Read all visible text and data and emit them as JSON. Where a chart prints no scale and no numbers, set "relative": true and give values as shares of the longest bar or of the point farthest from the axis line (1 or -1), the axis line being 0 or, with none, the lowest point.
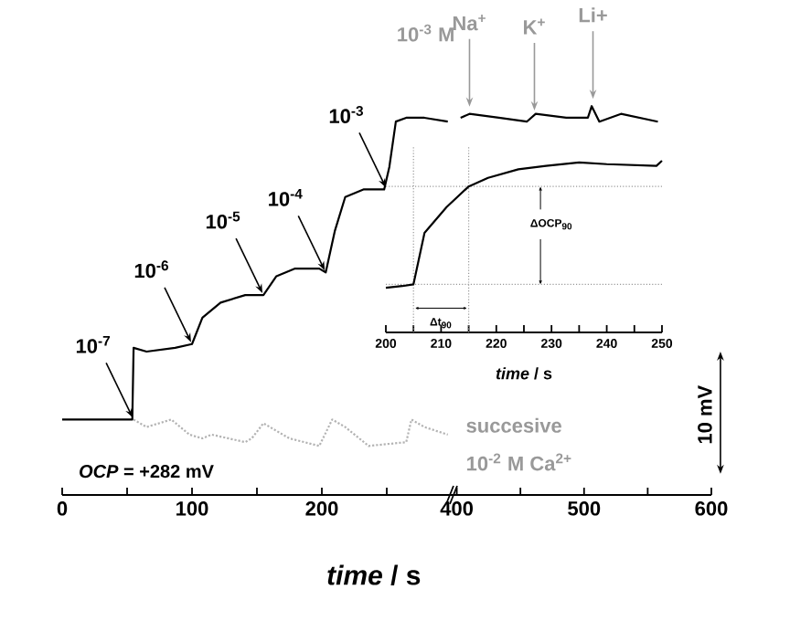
{
  "chart_data": [
    {
      "type": "line",
      "relative": true,
      "xlim": [
        0,
        300
      ],
      "xticks": [
        0,
        {
          "value": 50,
          "label": null
        },
        100,
        {
          "value": 150,
          "label": null
        },
        200,
        {
          "value": 250,
          "label": null
        }
      ],
      "xlabel": "*time* / s",
      "tick_labels": "x",
      "series": [
        {
          "color": "#000000",
          "line_style": "solid",
          "x": [
            0,
            54,
            55,
            65,
            87,
            100,
            108,
            122,
            141,
            155,
            165,
            179,
            198,
            203,
            210,
            218,
            232,
            248,
            252,
            257,
            265,
            279,
            297
          ],
          "values": [
            0.2,
            0.2,
            0.39,
            0.38,
            0.39,
            0.4,
            0.47,
            0.51,
            0.53,
            0.53,
            0.58,
            0.6,
            0.6,
            0.59,
            0.7,
            0.79,
            0.81,
            0.81,
            0.87,
            0.99,
            1.0,
            1.0,
            0.99
          ]
        },
        {
          "color": "#b3b3b3",
          "line_style": "dotted",
          "x": [
            55,
            65,
            84,
            98,
            108,
            115,
            141,
            146,
            155,
            175,
            198,
            208,
            218,
            236,
            265,
            269,
            279,
            297
          ],
          "values": [
            0.2,
            0.18,
            0.2,
            0.16,
            0.15,
            0.16,
            0.14,
            0.15,
            0.19,
            0.15,
            0.13,
            0.2,
            0.18,
            0.13,
            0.14,
            0.2,
            0.18,
            0.16
          ]
        }
      ],
      "annotations": [
        {
          "text": "10$^{-7}$",
          "x": 55,
          "y": 0.2
        },
        {
          "text": "10$^{-6}$",
          "x": 100,
          "y": 0.4
        },
        {
          "text": "10$^{-5}$",
          "x": 155,
          "y": 0.53
        },
        {
          "text": "10$^{-4}$",
          "x": 203,
          "y": 0.59
        },
        {
          "text": "10$^{-3}$",
          "x": 250,
          "y": 0.81
        },
        "*OCP* = +282 mV"
      ]
    },
    {
      "type": "line",
      "relative": true,
      "xlim": [
        396,
        600
      ],
      "xticks": [
        400,
        {
          "value": 450,
          "label": null
        },
        500,
        {
          "value": 550,
          "label": null
        },
        600
      ],
      "tick_labels": "x",
      "series": [
        {
          "color": "#000000",
          "line_style": "solid",
          "x": [
            403,
            410,
            433,
            455,
            462,
            486,
            503,
            506,
            512,
            529,
            558
          ],
          "values": [
            0.97,
            0.98,
            0.97,
            0.96,
            0.98,
            0.97,
            0.97,
            1.0,
            0.96,
            0.98,
            0.96
          ]
        }
      ],
      "annotations": [
        "10$^{-3}$ M",
        {
          "text": "Na$^{+}$",
          "x": 410,
          "y": 0.98
        },
        {
          "text": "K$^{+}$",
          "x": 461,
          "y": 0.97
        },
        {
          "text": "Li+",
          "x": 507,
          "y": 1.0
        },
        "succesive",
        "10$^{-2}$ M Ca$^{2+}$",
        "10 mV"
      ]
    },
    {
      "type": "line",
      "relative": true,
      "xlim": [
        200,
        250
      ],
      "xticks": [
        200,
        {
          "value": 205,
          "label": null
        },
        210,
        {
          "value": 215,
          "label": null
        },
        220,
        {
          "value": 225,
          "label": null
        },
        230,
        {
          "value": 235,
          "label": null
        },
        240,
        {
          "value": 245,
          "label": null
        },
        250
      ],
      "xlabel": "*time* / s",
      "tick_labels": "x",
      "series": [
        {
          "color": "#000000",
          "line_style": "solid",
          "x": [
            200,
            203,
            205,
            207,
            211,
            215,
            218.5,
            224,
            229,
            235,
            240,
            249,
            250
          ],
          "values": [
            0.26,
            0.27,
            0.28,
            0.58,
            0.73,
            0.85,
            0.9,
            0.95,
            0.97,
            0.99,
            0.98,
            0.97,
            1.0
          ]
        }
      ],
      "ref_lines": [
        {
          "axis": "x",
          "value": 205,
          "color": "#999999",
          "line_style": "dotted"
        },
        {
          "axis": "x",
          "value": 215,
          "color": "#999999",
          "line_style": "dotted"
        },
        {
          "axis": "y",
          "value": 0.28,
          "color": "#999999",
          "line_style": "dotted"
        },
        {
          "axis": "y",
          "value": 0.85,
          "color": "#999999",
          "line_style": "dotted"
        }
      ],
      "annotations": [
        "ΔOCP$_{90}$",
        "Δt$_{90}$"
      ]
    }
  ]
}
